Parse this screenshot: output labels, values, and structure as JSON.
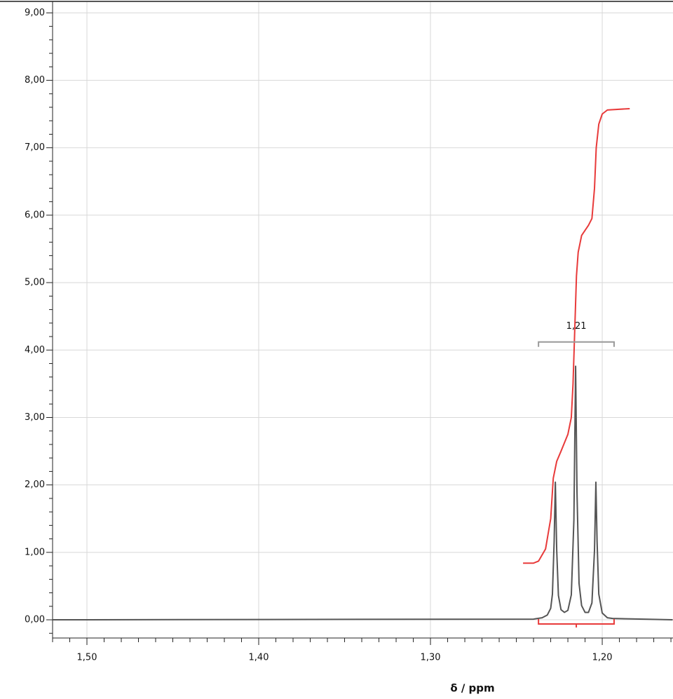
{
  "chart_data": {
    "type": "line",
    "xlabel": "δ / ppm",
    "xlim": [
      1.52,
      1.1588
    ],
    "ylim": [
      -0.27,
      9.17
    ],
    "grid": true,
    "xticks": [
      {
        "value": 1.5,
        "label": "1,50"
      },
      {
        "value": 1.4,
        "label": "1,40"
      },
      {
        "value": 1.3,
        "label": "1,30"
      },
      {
        "value": 1.2,
        "label": "1,20"
      }
    ],
    "xticks_minor": [
      1.52,
      1.51,
      1.49,
      1.48,
      1.47,
      1.46,
      1.45,
      1.44,
      1.43,
      1.42,
      1.41,
      1.39,
      1.38,
      1.37,
      1.36,
      1.35,
      1.34,
      1.33,
      1.32,
      1.31,
      1.29,
      1.28,
      1.27,
      1.26,
      1.25,
      1.24,
      1.23,
      1.22,
      1.21,
      1.19,
      1.18,
      1.17,
      1.16
    ],
    "yticks": [
      {
        "value": 0,
        "label": "0,00"
      },
      {
        "value": 1,
        "label": "1,00"
      },
      {
        "value": 2,
        "label": "2,00"
      },
      {
        "value": 3,
        "label": "3,00"
      },
      {
        "value": 4,
        "label": "4,00"
      },
      {
        "value": 5,
        "label": "5,00"
      },
      {
        "value": 6,
        "label": "6,00"
      },
      {
        "value": 7,
        "label": "7,00"
      },
      {
        "value": 8,
        "label": "8,00"
      },
      {
        "value": 9,
        "label": "9,00"
      }
    ],
    "yticks_minor": [
      -0.2,
      0.2,
      0.4,
      0.6,
      0.8,
      1.2,
      1.4,
      1.6,
      1.8,
      2.2,
      2.4,
      2.6,
      2.8,
      3.2,
      3.4,
      3.6,
      3.8,
      4.2,
      4.4,
      4.6,
      4.8,
      5.2,
      5.4,
      5.6,
      5.8,
      6.2,
      6.4,
      6.6,
      6.8,
      7.2,
      7.4,
      7.6,
      7.8,
      8.2,
      8.4,
      8.6,
      8.8
    ],
    "series": [
      {
        "color": "#555555",
        "x": [
          1.52,
          1.24,
          1.235,
          1.232,
          1.23,
          1.229,
          1.228,
          1.2273,
          1.2265,
          1.2255,
          1.224,
          1.222,
          1.22,
          1.218,
          1.2165,
          1.2155,
          1.2147,
          1.2135,
          1.212,
          1.21,
          1.208,
          1.206,
          1.2045,
          1.2037,
          1.203,
          1.202,
          1.2,
          1.197,
          1.194,
          1.159
        ],
        "values": [
          0,
          0.01,
          0.03,
          0.07,
          0.17,
          0.38,
          1.16,
          2.04,
          1.03,
          0.36,
          0.15,
          0.11,
          0.14,
          0.37,
          1.48,
          3.76,
          1.9,
          0.54,
          0.21,
          0.11,
          0.11,
          0.25,
          1.03,
          2.04,
          1.16,
          0.38,
          0.1,
          0.03,
          0.02,
          0
        ]
      },
      {
        "color": "#e83a3a",
        "x": [
          1.2461,
          1.24,
          1.2371,
          1.233,
          1.23,
          1.2285,
          1.2265,
          1.224,
          1.22,
          1.218,
          1.217,
          1.216,
          1.215,
          1.214,
          1.212,
          1.208,
          1.206,
          1.2045,
          1.2035,
          1.202,
          1.2,
          1.197,
          1.184
        ],
        "values": [
          0.84,
          0.84,
          0.87,
          1.05,
          1.5,
          2.1,
          2.35,
          2.5,
          2.75,
          3.0,
          3.5,
          4.3,
          5.1,
          5.45,
          5.7,
          5.85,
          5.95,
          6.4,
          7.0,
          7.35,
          7.5,
          7.56,
          7.58
        ]
      }
    ],
    "annotations": [
      {
        "text": "1,21",
        "x": [
          1.2371,
          1.1931
        ],
        "y": 4.12
      }
    ],
    "integral_range": [
      1.2371,
      1.1931
    ]
  }
}
